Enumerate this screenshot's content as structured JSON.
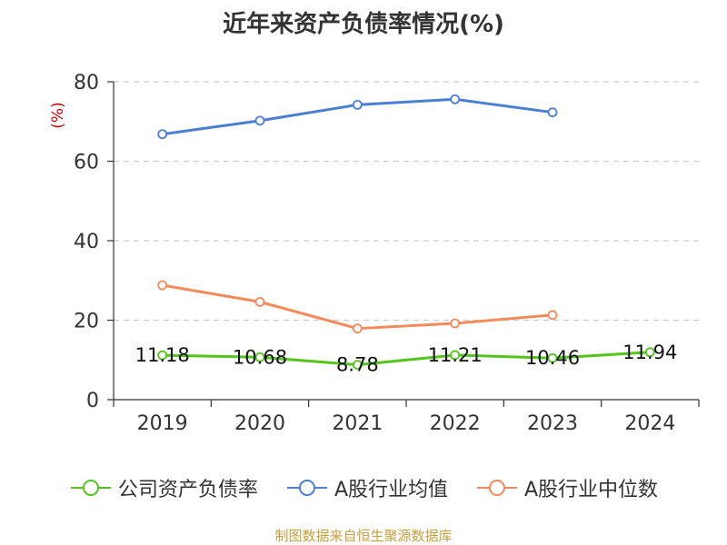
{
  "chart_data": {
    "type": "line",
    "title": "近年来资产负债率情况(%)",
    "ylabel": "(%)",
    "xlabel": "",
    "categories": [
      "2019",
      "2020",
      "2021",
      "2022",
      "2023",
      "2024"
    ],
    "ylim": [
      0,
      80
    ],
    "yticks": [
      0,
      20,
      40,
      60,
      80
    ],
    "grid": true,
    "legend_position": "bottom",
    "series": [
      {
        "name": "公司资产负债率",
        "color": "#52c41a",
        "values": [
          11.18,
          10.68,
          8.78,
          11.21,
          10.46,
          11.94
        ],
        "labels": [
          "11.18",
          "10.68",
          "8.78",
          "11.21",
          "10.46",
          "11.94"
        ]
      },
      {
        "name": "A股行业均值",
        "color": "#4a7fd6",
        "values": [
          66.8,
          70.2,
          74.2,
          75.6,
          72.3,
          null
        ]
      },
      {
        "name": "A股行业中位数",
        "color": "#f58a59",
        "values": [
          28.8,
          24.6,
          17.9,
          19.2,
          21.3,
          null
        ]
      }
    ]
  },
  "source": "制图数据来自恒生聚源数据库",
  "colors": {
    "ylabel": "#cc0000",
    "source": "#c8a03c",
    "grid": "#cccccc",
    "axis": "#333333"
  }
}
